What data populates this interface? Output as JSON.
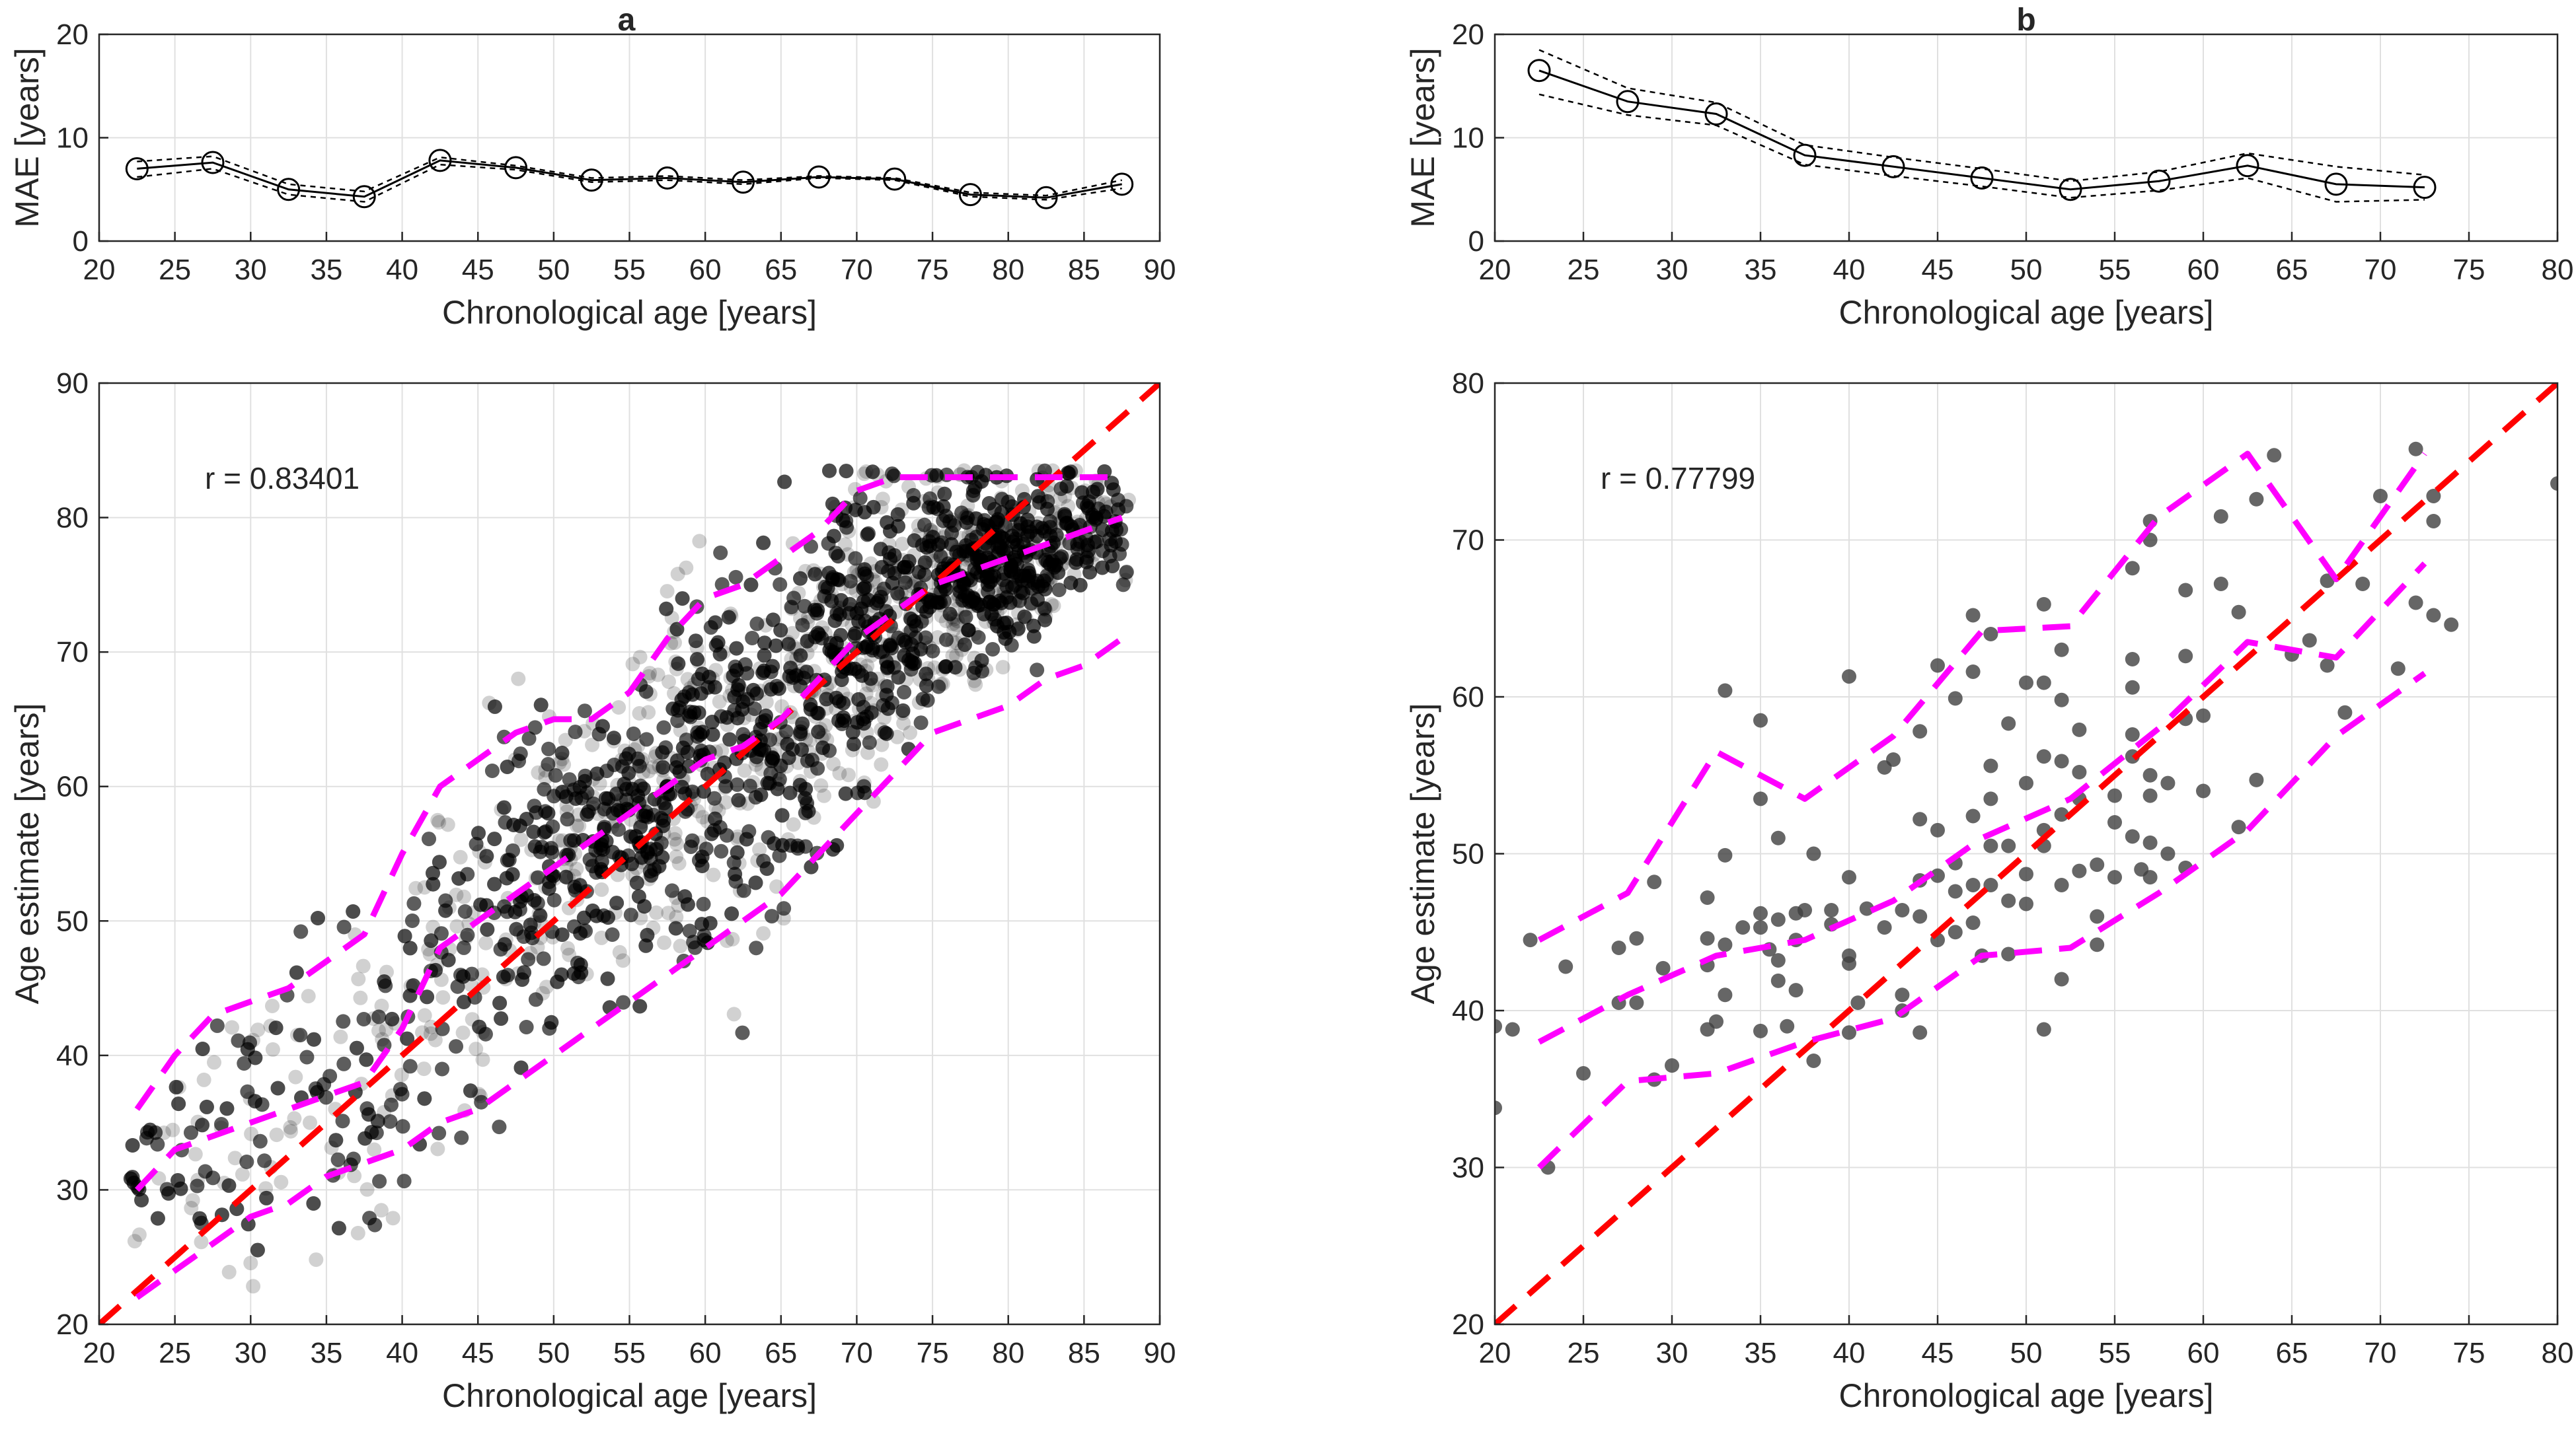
{
  "panel_titles": [
    "a",
    "b"
  ],
  "chart_data": [
    {
      "id": "a-top",
      "type": "line",
      "panel": "a",
      "title": "a",
      "xlabel": "Chronological age [years]",
      "ylabel": "MAE [years]",
      "xlim": [
        20,
        90
      ],
      "ylim": [
        0,
        20
      ],
      "xticks": [
        20,
        25,
        30,
        35,
        40,
        45,
        50,
        55,
        60,
        65,
        70,
        75,
        80,
        85,
        90
      ],
      "yticks": [
        0,
        10,
        20
      ],
      "grid": true,
      "series": [
        {
          "style": "solid-circles",
          "x": [
            22.5,
            27.5,
            32.5,
            37.5,
            42.5,
            47.5,
            52.5,
            57.5,
            62.5,
            67.5,
            72.5,
            77.5,
            82.5,
            87.5
          ],
          "values": [
            7.0,
            7.6,
            5.0,
            4.3,
            7.8,
            7.1,
            5.9,
            6.1,
            5.7,
            6.2,
            6.0,
            4.5,
            4.2,
            5.5
          ]
        },
        {
          "style": "dotted",
          "x": [
            22.5,
            27.5,
            32.5,
            37.5,
            42.5,
            47.5,
            52.5,
            57.5,
            62.5,
            67.5,
            72.5,
            77.5,
            82.5,
            87.5
          ],
          "values": [
            7.7,
            8.2,
            5.5,
            4.8,
            8.1,
            7.3,
            6.1,
            6.3,
            5.9,
            6.3,
            6.1,
            4.7,
            4.4,
            5.9
          ]
        },
        {
          "style": "dotted",
          "x": [
            22.5,
            27.5,
            32.5,
            37.5,
            42.5,
            47.5,
            52.5,
            57.5,
            62.5,
            67.5,
            72.5,
            77.5,
            82.5,
            87.5
          ],
          "values": [
            6.2,
            7.0,
            4.5,
            3.8,
            7.4,
            6.9,
            5.7,
            5.9,
            5.5,
            6.1,
            5.9,
            4.3,
            4.0,
            5.1
          ]
        }
      ]
    },
    {
      "id": "b-top",
      "type": "line",
      "panel": "b",
      "title": "b",
      "xlabel": "Chronological age [years]",
      "ylabel": "MAE [years]",
      "xlim": [
        20,
        80
      ],
      "ylim": [
        0,
        20
      ],
      "xticks": [
        20,
        25,
        30,
        35,
        40,
        45,
        50,
        55,
        60,
        65,
        70,
        75,
        80
      ],
      "yticks": [
        0,
        10,
        20
      ],
      "grid": true,
      "series": [
        {
          "style": "solid-circles",
          "x": [
            22.5,
            27.5,
            32.5,
            37.5,
            42.5,
            47.5,
            52.5,
            57.5,
            62.5,
            67.5,
            72.5
          ],
          "values": [
            16.5,
            13.5,
            12.3,
            8.3,
            7.2,
            6.1,
            5.0,
            5.8,
            7.3,
            5.5,
            5.2
          ]
        },
        {
          "style": "dotted",
          "x": [
            22.5,
            27.5,
            32.5,
            37.5,
            42.5,
            47.5,
            52.5,
            57.5,
            62.5,
            67.5,
            72.5
          ],
          "values": [
            18.5,
            14.8,
            13.4,
            9.3,
            8.1,
            7.0,
            5.8,
            6.7,
            8.5,
            7.2,
            6.4
          ]
        },
        {
          "style": "dotted",
          "x": [
            22.5,
            27.5,
            32.5,
            37.5,
            42.5,
            47.5,
            52.5,
            57.5,
            62.5,
            67.5,
            72.5
          ],
          "values": [
            14.2,
            12.2,
            11.2,
            7.4,
            6.3,
            5.3,
            4.2,
            4.9,
            6.1,
            3.8,
            4.0
          ]
        }
      ]
    },
    {
      "id": "a-bottom",
      "type": "scatter",
      "panel": "a",
      "xlabel": "Chronological age [years]",
      "ylabel": "Age estimate [years]",
      "xlim": [
        20,
        90
      ],
      "ylim": [
        20,
        90
      ],
      "xticks": [
        20,
        25,
        30,
        35,
        40,
        45,
        50,
        55,
        60,
        65,
        70,
        75,
        80,
        85,
        90
      ],
      "yticks": [
        20,
        30,
        40,
        50,
        60,
        70,
        80,
        90
      ],
      "grid": true,
      "annotation": "r = 0.83401",
      "identity_line": {
        "x": [
          20,
          90
        ],
        "y": [
          20,
          90
        ],
        "color": "#ff0000"
      },
      "scatter_model": {
        "x_min": 22,
        "x_max": 88,
        "y_cap": 83.5,
        "n_points": 7000,
        "opacity": 0.18
      },
      "band_lines": [
        {
          "name": "upper",
          "x": [
            22.5,
            25,
            27.5,
            30,
            32.5,
            35,
            37.5,
            40,
            42.5,
            45,
            47.5,
            50,
            52.5,
            55,
            57.5,
            60,
            62.5,
            65,
            67.5,
            70,
            72.5,
            75,
            77.5,
            80,
            82.5,
            85,
            87.5
          ],
          "values": [
            36,
            40,
            43,
            44,
            45,
            47,
            49,
            55,
            60,
            62,
            64,
            65,
            65,
            67,
            71,
            74,
            75,
            77,
            79,
            82,
            83,
            83,
            83,
            83,
            83,
            83,
            83
          ]
        },
        {
          "name": "middle",
          "x": [
            22.5,
            25,
            27.5,
            30,
            32.5,
            35,
            37.5,
            40,
            42.5,
            45,
            47.5,
            50,
            52.5,
            55,
            57.5,
            60,
            62.5,
            65,
            67.5,
            70,
            72.5,
            75,
            77.5,
            80,
            82.5,
            85,
            87.5
          ],
          "values": [
            30,
            33,
            34,
            35,
            36,
            37,
            38,
            42,
            48,
            50,
            52,
            54,
            56,
            58,
            60,
            62,
            63,
            65,
            68,
            71,
            73,
            75,
            76,
            77,
            78,
            79,
            80
          ]
        },
        {
          "name": "lower",
          "x": [
            22.5,
            25,
            27.5,
            30,
            32.5,
            35,
            37.5,
            40,
            42.5,
            45,
            47.5,
            50,
            52.5,
            55,
            57.5,
            60,
            62.5,
            65,
            67.5,
            70,
            72.5,
            75,
            77.5,
            80,
            82.5,
            85,
            87.5
          ],
          "values": [
            22,
            24,
            26,
            28,
            29,
            31,
            32,
            33,
            35,
            36,
            38,
            40,
            42,
            44,
            46,
            48,
            50,
            52,
            55,
            58,
            61,
            64,
            65,
            66,
            68,
            69,
            71
          ]
        }
      ],
      "band_color": "#ff00ff"
    },
    {
      "id": "b-bottom",
      "type": "scatter",
      "panel": "b",
      "xlabel": "Chronological age [years]",
      "ylabel": "Age estimate [years]",
      "xlim": [
        20,
        80
      ],
      "ylim": [
        20,
        80
      ],
      "xticks": [
        20,
        25,
        30,
        35,
        40,
        45,
        50,
        55,
        60,
        65,
        70,
        75,
        80
      ],
      "yticks": [
        20,
        30,
        40,
        50,
        60,
        70,
        80
      ],
      "grid": true,
      "annotation": "r = 0.77799",
      "identity_line": {
        "x": [
          20,
          80
        ],
        "y": [
          20,
          80
        ],
        "color": "#ff0000"
      },
      "points": [
        [
          20,
          39
        ],
        [
          20,
          33.8
        ],
        [
          21,
          38.8
        ],
        [
          22,
          44.5
        ],
        [
          23,
          30
        ],
        [
          24,
          42.8
        ],
        [
          25,
          36
        ],
        [
          27,
          40.5
        ],
        [
          27,
          44
        ],
        [
          28,
          40.5
        ],
        [
          28,
          44.6
        ],
        [
          29,
          48.2
        ],
        [
          29,
          35.6
        ],
        [
          29.5,
          42.7
        ],
        [
          30,
          36.5
        ],
        [
          32,
          38.8
        ],
        [
          32,
          42.9
        ],
        [
          32,
          44.6
        ],
        [
          32,
          47.2
        ],
        [
          32.5,
          39.3
        ],
        [
          33,
          41
        ],
        [
          33,
          44.2
        ],
        [
          33,
          49.9
        ],
        [
          33,
          60.4
        ],
        [
          34,
          45.3
        ],
        [
          35,
          58.5
        ],
        [
          35,
          46.2
        ],
        [
          35,
          53.5
        ],
        [
          35,
          45.3
        ],
        [
          35,
          38.7
        ],
        [
          35.5,
          43.9
        ],
        [
          36,
          51
        ],
        [
          36,
          43.2
        ],
        [
          36,
          41.9
        ],
        [
          36,
          45.8
        ],
        [
          36.5,
          39
        ],
        [
          37,
          46.2
        ],
        [
          37,
          41.3
        ],
        [
          37,
          44.5
        ],
        [
          37.5,
          46.4
        ],
        [
          38,
          36.8
        ],
        [
          38,
          50
        ],
        [
          39,
          46.4
        ],
        [
          39,
          45.5
        ],
        [
          40,
          61.3
        ],
        [
          40,
          48.5
        ],
        [
          40,
          43.5
        ],
        [
          40,
          43
        ],
        [
          40,
          38.6
        ],
        [
          40.5,
          40.5
        ],
        [
          41,
          46.5
        ],
        [
          42,
          45.3
        ],
        [
          42,
          55.5
        ],
        [
          42.5,
          56
        ],
        [
          43,
          46.4
        ],
        [
          43,
          41
        ],
        [
          43,
          40
        ],
        [
          44,
          57.8
        ],
        [
          44,
          52.2
        ],
        [
          44,
          48.3
        ],
        [
          44,
          46
        ],
        [
          44,
          38.6
        ],
        [
          45,
          62
        ],
        [
          45,
          51.5
        ],
        [
          45,
          48.6
        ],
        [
          45,
          44.5
        ],
        [
          46,
          59.9
        ],
        [
          46,
          49.4
        ],
        [
          46,
          47.6
        ],
        [
          46,
          45
        ],
        [
          47,
          65.2
        ],
        [
          47,
          61.6
        ],
        [
          47,
          52.4
        ],
        [
          47,
          48
        ],
        [
          47,
          45.6
        ],
        [
          47.5,
          43.5
        ],
        [
          48,
          64
        ],
        [
          48,
          55.6
        ],
        [
          48,
          53.5
        ],
        [
          48,
          50.5
        ],
        [
          48,
          48
        ],
        [
          49,
          58.3
        ],
        [
          49,
          50.5
        ],
        [
          49,
          47
        ],
        [
          49,
          43.6
        ],
        [
          50,
          60.9
        ],
        [
          50,
          54.5
        ],
        [
          50,
          48.7
        ],
        [
          50,
          46.8
        ],
        [
          51,
          65.9
        ],
        [
          51,
          60.9
        ],
        [
          51,
          56.2
        ],
        [
          51,
          51.5
        ],
        [
          51,
          50.5
        ],
        [
          51,
          38.8
        ],
        [
          52,
          63
        ],
        [
          52,
          59.8
        ],
        [
          52,
          55.9
        ],
        [
          52,
          52.5
        ],
        [
          52,
          48
        ],
        [
          52,
          42
        ],
        [
          53,
          57.9
        ],
        [
          53,
          55.2
        ],
        [
          53,
          53.5
        ],
        [
          53,
          48.9
        ],
        [
          54,
          49.3
        ],
        [
          54,
          46
        ],
        [
          54,
          44.2
        ],
        [
          55,
          53.7
        ],
        [
          55,
          52
        ],
        [
          55,
          48.5
        ],
        [
          56,
          68.2
        ],
        [
          56,
          62.4
        ],
        [
          56,
          60.6
        ],
        [
          56,
          57.6
        ],
        [
          56,
          56.2
        ],
        [
          56,
          51.1
        ],
        [
          56.5,
          49
        ],
        [
          57,
          71.2
        ],
        [
          57,
          70
        ],
        [
          57,
          55
        ],
        [
          57,
          53.7
        ],
        [
          57,
          50.7
        ],
        [
          57,
          48.5
        ],
        [
          58,
          54.5
        ],
        [
          58,
          50
        ],
        [
          59,
          66.8
        ],
        [
          59,
          62.6
        ],
        [
          59,
          58.6
        ],
        [
          59,
          49.1
        ],
        [
          60,
          58.8
        ],
        [
          60,
          54
        ],
        [
          61,
          67.2
        ],
        [
          61,
          71.5
        ],
        [
          62,
          65.4
        ],
        [
          62,
          51.7
        ],
        [
          63,
          72.6
        ],
        [
          63,
          54.7
        ],
        [
          64,
          75.4
        ],
        [
          65,
          62.7
        ],
        [
          66,
          63.6
        ],
        [
          67,
          62
        ],
        [
          67,
          67.4
        ],
        [
          68,
          59
        ],
        [
          69,
          67.2
        ],
        [
          70,
          72.8
        ],
        [
          71,
          61.8
        ],
        [
          72,
          75.8
        ],
        [
          72,
          66
        ],
        [
          73,
          72.8
        ],
        [
          73,
          71.2
        ],
        [
          73,
          65.2
        ],
        [
          74,
          64.6
        ],
        [
          80,
          73.6
        ]
      ],
      "band_lines": [
        {
          "name": "upper",
          "x": [
            22.5,
            27.5,
            32.5,
            37.5,
            42.5,
            47.5,
            52.5,
            57.5,
            62.5,
            67.5,
            72.5
          ],
          "values": [
            44.5,
            47.5,
            56.5,
            53.5,
            57.5,
            64.2,
            64.5,
            71.5,
            75.5,
            67.5,
            75.5
          ]
        },
        {
          "name": "middle",
          "x": [
            22.5,
            27.5,
            32.5,
            37.5,
            42.5,
            47.5,
            52.5,
            57.5,
            62.5,
            67.5,
            72.5
          ],
          "values": [
            38,
            41,
            43.5,
            44.5,
            47,
            51,
            53.5,
            58,
            63.5,
            62.5,
            68.5
          ]
        },
        {
          "name": "lower",
          "x": [
            22.5,
            27.5,
            32.5,
            37.5,
            42.5,
            47.5,
            52.5,
            57.5,
            62.5,
            67.5,
            72.5
          ],
          "values": [
            30,
            35.5,
            36,
            38,
            39.5,
            43.5,
            44,
            47.5,
            51.5,
            57.5,
            61.5
          ]
        }
      ],
      "band_color": "#ff00ff"
    }
  ]
}
